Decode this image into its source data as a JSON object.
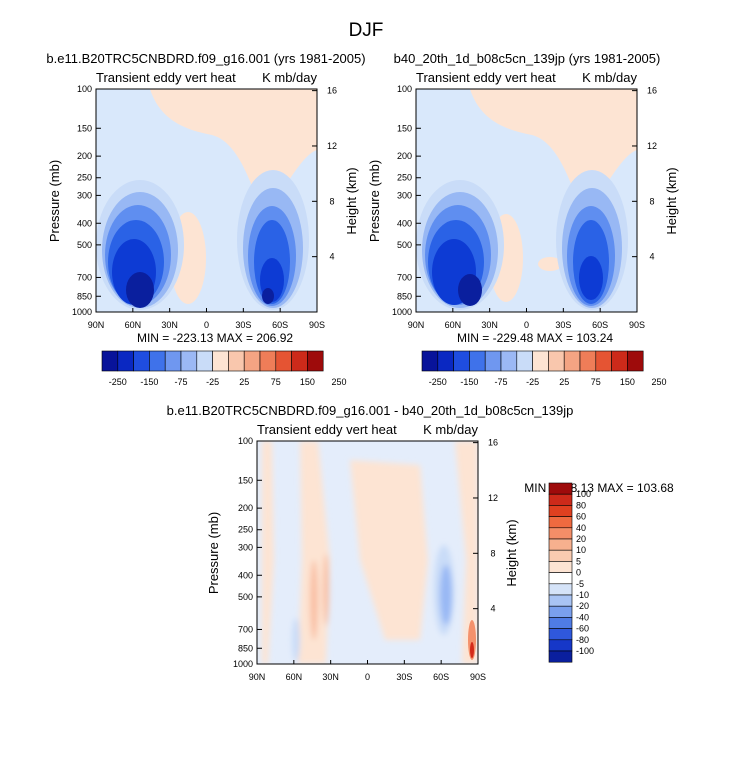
{
  "page_title": "DJF",
  "chart_data": [
    {
      "type": "heatmap",
      "title": "b.e11.B20TRC5CNBDRD.f09_g16.001 (yrs 1981-2005)",
      "subtitle_left": "Transient eddy vert heat",
      "subtitle_right": "K mb/day",
      "ylabel": "Pressure (mb)",
      "ylabel_right": "Height (km)",
      "x_ticks": [
        "90N",
        "60N",
        "30N",
        "0",
        "30S",
        "60S",
        "90S"
      ],
      "y_ticks": [
        "100",
        "150",
        "200",
        "250",
        "300",
        "400",
        "500",
        "700",
        "850",
        "1000"
      ],
      "y_ticks_right": [
        "16",
        "12",
        "8",
        "4"
      ],
      "stats": "MIN = -223.13  MAX = 206.92",
      "colorbar_labels": [
        "-250",
        "-150",
        "-75",
        "-25",
        "25",
        "75",
        "150",
        "250"
      ],
      "features": [
        {
          "lat": 58,
          "p": 700,
          "value": -180
        },
        {
          "lat": 45,
          "p": 600,
          "value": -90
        },
        {
          "lat": -50,
          "p": 650,
          "value": -160
        },
        {
          "lat": -35,
          "p": 300,
          "value": -40
        },
        {
          "lat": 30,
          "p": 650,
          "value": 15
        },
        {
          "lat": -10,
          "p": 250,
          "value": 8
        }
      ]
    },
    {
      "type": "heatmap",
      "title": "b40_20th_1d_b08c5cn_139jp (yrs 1981-2005)",
      "subtitle_left": "Transient eddy vert heat",
      "subtitle_right": "K mb/day",
      "ylabel": "Pressure (mb)",
      "ylabel_right": "Height (km)",
      "x_ticks": [
        "90N",
        "60N",
        "30N",
        "0",
        "30S",
        "60S",
        "90S"
      ],
      "y_ticks": [
        "100",
        "150",
        "200",
        "250",
        "300",
        "400",
        "500",
        "700",
        "850",
        "1000"
      ],
      "y_ticks_right": [
        "16",
        "12",
        "8",
        "4"
      ],
      "stats": "MIN = -229.48  MAX = 103.24",
      "colorbar_labels": [
        "-250",
        "-150",
        "-75",
        "-25",
        "25",
        "75",
        "150",
        "250"
      ],
      "features": [
        {
          "lat": 58,
          "p": 700,
          "value": -175
        },
        {
          "lat": 45,
          "p": 600,
          "value": -85
        },
        {
          "lat": -48,
          "p": 650,
          "value": -150
        },
        {
          "lat": -35,
          "p": 300,
          "value": -40
        },
        {
          "lat": 28,
          "p": 650,
          "value": 15
        },
        {
          "lat": -10,
          "p": 250,
          "value": 8
        }
      ]
    },
    {
      "type": "heatmap",
      "title": "b.e11.B20TRC5CNBDRD.f09_g16.001 - b40_20th_1d_b08c5cn_139jp",
      "subtitle_left": "Transient eddy vert heat",
      "subtitle_right": "K mb/day",
      "ylabel": "Pressure (mb)",
      "ylabel_right": "Height (km)",
      "x_ticks": [
        "90N",
        "60N",
        "30N",
        "0",
        "30S",
        "60S",
        "90S"
      ],
      "y_ticks": [
        "100",
        "150",
        "200",
        "250",
        "300",
        "400",
        "500",
        "700",
        "850",
        "1000"
      ],
      "y_ticks_right": [
        "16",
        "12",
        "8",
        "4"
      ],
      "stats": "MIN = -18.13  MAX = 103.68",
      "colorbar_labels": [
        "100",
        "80",
        "60",
        "40",
        "20",
        "10",
        "5",
        "0",
        "-5",
        "-10",
        "-20",
        "-40",
        "-60",
        "-80",
        "-100"
      ],
      "features": [
        {
          "lat": -52,
          "p": 500,
          "value": -12
        },
        {
          "lat": 40,
          "p": 500,
          "value": 8
        },
        {
          "lat": -88,
          "p": 900,
          "value": 60
        },
        {
          "lat": 10,
          "p": 250,
          "value": 5
        }
      ]
    }
  ],
  "colors": {
    "bg_light_blue": "#d9e8fb",
    "bg_light_peach": "#fde4d3",
    "blue_ramp": [
      "#0a1f9e",
      "#0d3bd4",
      "#2a62e6",
      "#5f8ef0",
      "#98b8f4",
      "#c9dcf8"
    ],
    "red_ramp": [
      "#fde4d3",
      "#f9c0a4",
      "#f4916c",
      "#ec5b34",
      "#d42a1a",
      "#9e0b0b"
    ]
  }
}
